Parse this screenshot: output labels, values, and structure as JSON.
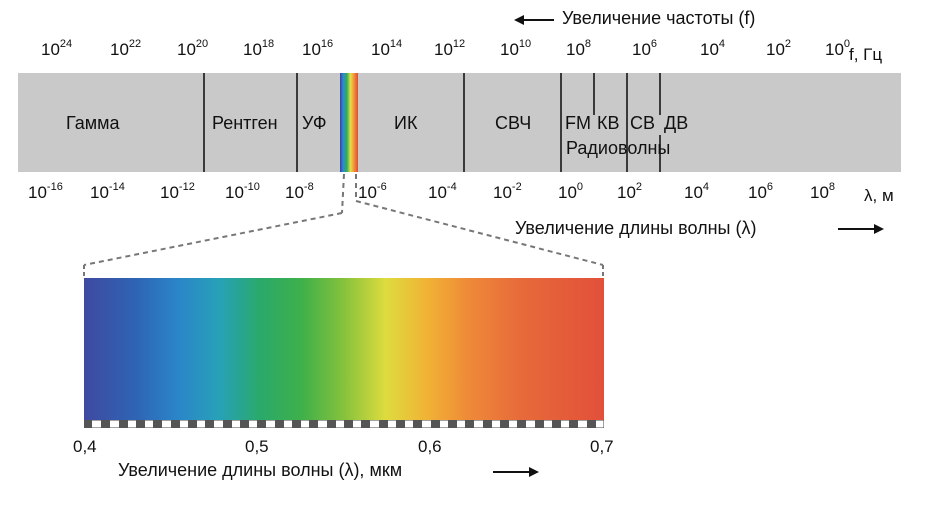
{
  "frequency_axis": {
    "direction_label": "Увеличение частоты (f)",
    "unit": "f, Гц",
    "ticks": [
      {
        "base": "10",
        "exp": "24"
      },
      {
        "base": "10",
        "exp": "22"
      },
      {
        "base": "10",
        "exp": "20"
      },
      {
        "base": "10",
        "exp": "18"
      },
      {
        "base": "10",
        "exp": "16"
      },
      {
        "base": "10",
        "exp": "14"
      },
      {
        "base": "10",
        "exp": "12"
      },
      {
        "base": "10",
        "exp": "10"
      },
      {
        "base": "10",
        "exp": "8"
      },
      {
        "base": "10",
        "exp": "6"
      },
      {
        "base": "10",
        "exp": "4"
      },
      {
        "base": "10",
        "exp": "2"
      },
      {
        "base": "10",
        "exp": "0"
      }
    ]
  },
  "wavelength_axis": {
    "direction_label": "Увеличение длины волны (λ)",
    "unit": "λ, м",
    "ticks": [
      {
        "base": "10",
        "exp": "-16"
      },
      {
        "base": "10",
        "exp": "-14"
      },
      {
        "base": "10",
        "exp": "-12"
      },
      {
        "base": "10",
        "exp": "-10"
      },
      {
        "base": "10",
        "exp": "-8"
      },
      {
        "base": "10",
        "exp": "-6"
      },
      {
        "base": "10",
        "exp": "-4"
      },
      {
        "base": "10",
        "exp": "-2"
      },
      {
        "base": "10",
        "exp": "0"
      },
      {
        "base": "10",
        "exp": "2"
      },
      {
        "base": "10",
        "exp": "4"
      },
      {
        "base": "10",
        "exp": "6"
      },
      {
        "base": "10",
        "exp": "8"
      }
    ]
  },
  "regions": {
    "gamma": "Гамма",
    "xray": "Рентген",
    "uv": "УФ",
    "ir": "ИК",
    "microwave": "СВЧ",
    "fm": "FM",
    "sw": "КВ",
    "mw": "СВ",
    "lw": "ДВ",
    "radio": "Радиоволны"
  },
  "visible_spectrum": {
    "ticks": [
      "0,4",
      "0,5",
      "0,6",
      "0,7"
    ],
    "axis_label": "Увеличение длины волны (λ), мкм"
  }
}
